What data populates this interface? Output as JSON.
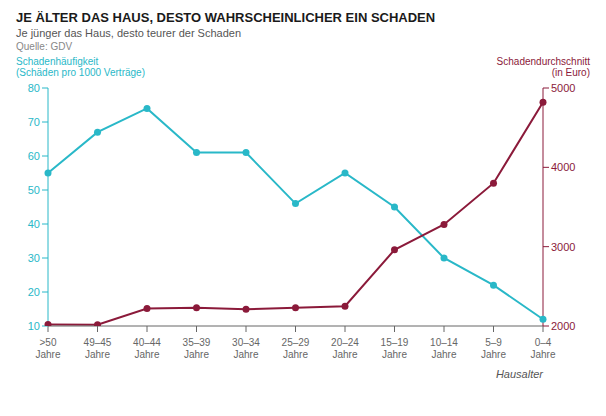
{
  "chart_data": {
    "type": "line",
    "title": "JE ÄLTER DAS HAUS, DESTO WAHRSCHEINLICHER EIN SCHADEN",
    "subtitle": "Je jünger das Haus, desto teurer der Schaden",
    "source": "Quelle: GDV",
    "xlabel": "Hausalter",
    "categories": [
      ">50\nJahre",
      "49–45\nJahre",
      "40–44\nJahre",
      "35–39\nJahre",
      "30–34\nJahre",
      "25–29\nJahre",
      "20–24\nJahre",
      "15–19\nJahre",
      "10–14\nJahre",
      "5–9\nJahre",
      "0–4\nJahre"
    ],
    "series": [
      {
        "name": "Schadenhäufigkeit\n(Schäden pro 1000 Verträge)",
        "color": "#29B8C8",
        "marker": "circle",
        "values": [
          55,
          67,
          74,
          61,
          61,
          46,
          55,
          45,
          30,
          22,
          12
        ]
      },
      {
        "name": "Schadendurchschnitt\n(in Euro)",
        "color": "#8B1A3A",
        "marker": "circle",
        "axis": "y2",
        "values": [
          2020,
          2016,
          2220,
          2230,
          2210,
          2230,
          2250,
          2960,
          3280,
          3800,
          4820
        ]
      }
    ],
    "ylim": [
      10,
      80
    ],
    "yticks": [
      10,
      20,
      30,
      40,
      50,
      60,
      70,
      80
    ],
    "y2lim": [
      2000,
      5000
    ],
    "y2ticks": [
      2000,
      3000,
      4000,
      5000
    ],
    "grid": false
  }
}
